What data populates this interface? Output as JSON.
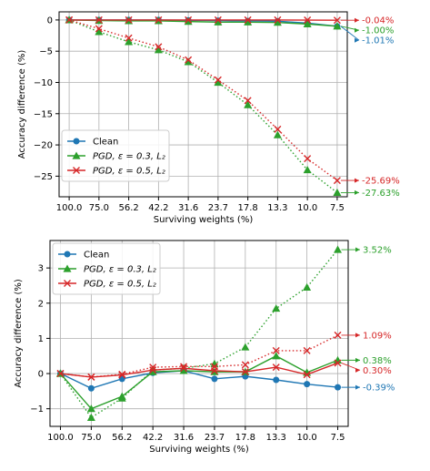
{
  "colors": {
    "clean": "#1f77b4",
    "pgd03": "#2ca02c",
    "pgd05": "#d62728",
    "grid": "#b0b0b0",
    "axis": "#000000"
  },
  "chart_data": [
    {
      "type": "line",
      "xlabel": "Surviving weights (%)",
      "ylabel": "Accuracy difference (%)",
      "categories": [
        "100.0",
        "75.0",
        "56.2",
        "42.2",
        "31.6",
        "23.7",
        "17.8",
        "13.3",
        "10.0",
        "7.5"
      ],
      "ylim": [
        -28.3,
        1.3
      ],
      "yticks": [
        0,
        -5,
        -10,
        -15,
        -20,
        -25
      ],
      "ytick_labels": [
        "0",
        "−5",
        "−10",
        "−15",
        "−20",
        "−25"
      ],
      "grid": true,
      "legend_position": "bottom-left",
      "series": [
        {
          "name": "Clean",
          "color_key": "clean",
          "marker": "circle",
          "style": "solid",
          "values": [
            0,
            0,
            0,
            0,
            -0.05,
            -0.1,
            -0.15,
            -0.2,
            -0.5,
            -1.01
          ],
          "end_label": "-1.01%"
        },
        {
          "name": "PGD, ε = 0.3, L₂",
          "color_key": "pgd03",
          "marker": "triangle",
          "style": "solid",
          "values": [
            0,
            -0.1,
            -0.15,
            -0.15,
            -0.25,
            -0.35,
            -0.35,
            -0.4,
            -0.65,
            -1.0
          ],
          "end_label": "-1.00%"
        },
        {
          "name": "PGD, ε = 0.5, L₂",
          "color_key": "pgd05",
          "marker": "x",
          "style": "solid",
          "values": [
            0,
            0,
            0,
            0,
            0,
            0,
            0,
            0,
            -0.02,
            -0.04
          ],
          "end_label": "-0.04%"
        },
        {
          "name": "",
          "color_key": "pgd03",
          "marker": "triangle",
          "style": "dotted",
          "values": [
            0,
            -1.9,
            -3.5,
            -4.8,
            -6.7,
            -10.0,
            -13.6,
            -18.4,
            -24.0,
            -27.63
          ],
          "end_label": "-27.63%"
        },
        {
          "name": "",
          "color_key": "pgd05",
          "marker": "x",
          "style": "dotted",
          "values": [
            0,
            -1.4,
            -2.9,
            -4.3,
            -6.4,
            -9.6,
            -12.9,
            -17.5,
            -22.2,
            -25.69
          ],
          "end_label": "-25.69%"
        }
      ]
    },
    {
      "type": "line",
      "xlabel": "Surviving weights (%)",
      "ylabel": "Accuracy difference (%)",
      "categories": [
        "100.0",
        "75.0",
        "56.2",
        "42.2",
        "31.6",
        "23.7",
        "17.8",
        "13.3",
        "10.0",
        "7.5"
      ],
      "ylim": [
        -1.5,
        3.78
      ],
      "yticks": [
        -1,
        0,
        1,
        2,
        3
      ],
      "ytick_labels": [
        "−1",
        "0",
        "1",
        "2",
        "3"
      ],
      "grid": true,
      "legend_position": "top-left",
      "series": [
        {
          "name": "Clean",
          "color_key": "clean",
          "marker": "circle",
          "style": "solid",
          "values": [
            0,
            -0.42,
            -0.15,
            0.02,
            0.08,
            -0.15,
            -0.08,
            -0.18,
            -0.3,
            -0.39
          ],
          "end_label": "-0.39%"
        },
        {
          "name": "PGD, ε = 0.3, L₂",
          "color_key": "pgd03",
          "marker": "triangle",
          "style": "solid",
          "values": [
            0,
            -1.0,
            -0.65,
            0.05,
            0.08,
            0.05,
            0.05,
            0.5,
            0.03,
            0.38
          ],
          "end_label": "0.38%"
        },
        {
          "name": "PGD, ε = 0.5, L₂",
          "color_key": "pgd05",
          "marker": "x",
          "style": "solid",
          "values": [
            0,
            -0.1,
            -0.04,
            0.1,
            0.15,
            0.08,
            0.05,
            0.18,
            -0.03,
            0.3
          ],
          "end_label": "0.30%"
        },
        {
          "name": "",
          "color_key": "pgd03",
          "marker": "triangle",
          "style": "dotted",
          "values": [
            0,
            -1.25,
            -0.7,
            0.1,
            0.15,
            0.28,
            0.75,
            1.85,
            2.45,
            3.52
          ],
          "end_label": "3.52%"
        },
        {
          "name": "",
          "color_key": "pgd05",
          "marker": "x",
          "style": "dotted",
          "values": [
            0,
            -0.1,
            -0.02,
            0.18,
            0.2,
            0.2,
            0.25,
            0.65,
            0.65,
            1.09
          ],
          "end_label": "1.09%"
        }
      ]
    }
  ]
}
